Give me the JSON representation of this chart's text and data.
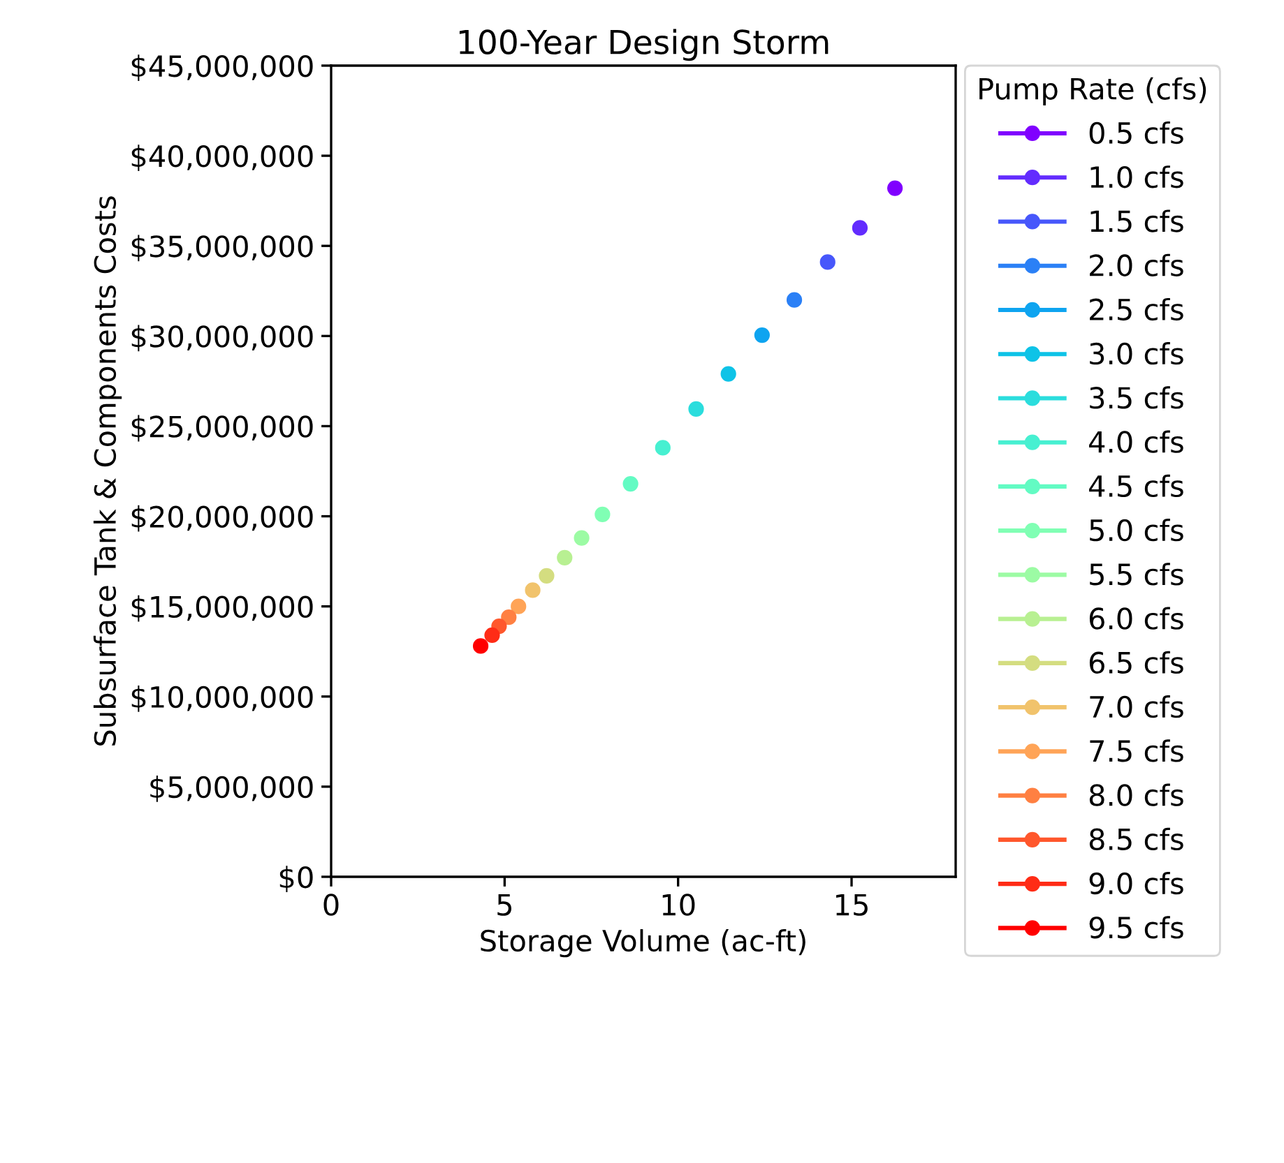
{
  "chart_data": {
    "type": "line",
    "title": "100-Year Design Storm",
    "xlabel": "Storage Volume (ac-ft)",
    "ylabel": "Subsurface Tank & Components Costs",
    "legend_title": "Pump Rate (cfs)",
    "legend": "right",
    "marker": "circle",
    "grid": false,
    "xlim": [
      0,
      18
    ],
    "xticks": [
      0,
      5,
      10,
      15
    ],
    "ylim": [
      0,
      45000000
    ],
    "yticks": [
      {
        "value": 0,
        "label": "$0"
      },
      {
        "value": 5000000,
        "label": "$5,000,000"
      },
      {
        "value": 10000000,
        "label": "$10,000,000"
      },
      {
        "value": 15000000,
        "label": "$15,000,000"
      },
      {
        "value": 20000000,
        "label": "$20,000,000"
      },
      {
        "value": 25000000,
        "label": "$25,000,000"
      },
      {
        "value": 30000000,
        "label": "$30,000,000"
      },
      {
        "value": 35000000,
        "label": "$35,000,000"
      },
      {
        "value": 40000000,
        "label": "$40,000,000"
      },
      {
        "value": 45000000,
        "label": "$45,000,000"
      }
    ],
    "series": [
      {
        "name": "0.5 cfs",
        "color": "#8000ff",
        "x": [
          16.25
        ],
        "values": [
          38200000
        ]
      },
      {
        "name": "1.0 cfs",
        "color": "#632cfe",
        "x": [
          15.24
        ],
        "values": [
          36000000
        ]
      },
      {
        "name": "1.5 cfs",
        "color": "#4757fb",
        "x": [
          14.31
        ],
        "values": [
          34100000
        ]
      },
      {
        "name": "2.0 cfs",
        "color": "#2b80f6",
        "x": [
          13.35
        ],
        "values": [
          32000000
        ]
      },
      {
        "name": "2.5 cfs",
        "color": "#0ea4f0",
        "x": [
          12.42
        ],
        "values": [
          30050000
        ]
      },
      {
        "name": "3.0 cfs",
        "color": "#0ec3e7",
        "x": [
          11.45
        ],
        "values": [
          27900000
        ]
      },
      {
        "name": "3.5 cfs",
        "color": "#2bdddd",
        "x": [
          10.52
        ],
        "values": [
          25950000
        ]
      },
      {
        "name": "4.0 cfs",
        "color": "#47f0d1",
        "x": [
          9.56
        ],
        "values": [
          23800000
        ]
      },
      {
        "name": "4.5 cfs",
        "color": "#63fbc3",
        "x": [
          8.63
        ],
        "values": [
          21800000
        ]
      },
      {
        "name": "5.0 cfs",
        "color": "#80ffb4",
        "x": [
          7.82
        ],
        "values": [
          20100000
        ]
      },
      {
        "name": "5.5 cfs",
        "color": "#9cfba4",
        "x": [
          7.22
        ],
        "values": [
          18800000
        ]
      },
      {
        "name": "6.0 cfs",
        "color": "#b8f092",
        "x": [
          6.73
        ],
        "values": [
          17700000
        ]
      },
      {
        "name": "6.5 cfs",
        "color": "#d4dd80",
        "x": [
          6.21
        ],
        "values": [
          16700000
        ]
      },
      {
        "name": "7.0 cfs",
        "color": "#f1c36c",
        "x": [
          5.81
        ],
        "values": [
          15900000
        ]
      },
      {
        "name": "7.5 cfs",
        "color": "#ffa457",
        "x": [
          5.4
        ],
        "values": [
          15000000
        ]
      },
      {
        "name": "8.0 cfs",
        "color": "#ff8042",
        "x": [
          5.12
        ],
        "values": [
          14400000
        ]
      },
      {
        "name": "8.5 cfs",
        "color": "#ff572c",
        "x": [
          4.84
        ],
        "values": [
          13900000
        ]
      },
      {
        "name": "9.0 cfs",
        "color": "#ff2c16",
        "x": [
          4.64
        ],
        "values": [
          13400000
        ]
      },
      {
        "name": "9.5 cfs",
        "color": "#ff0000",
        "x": [
          4.31
        ],
        "values": [
          12800000
        ]
      }
    ]
  }
}
